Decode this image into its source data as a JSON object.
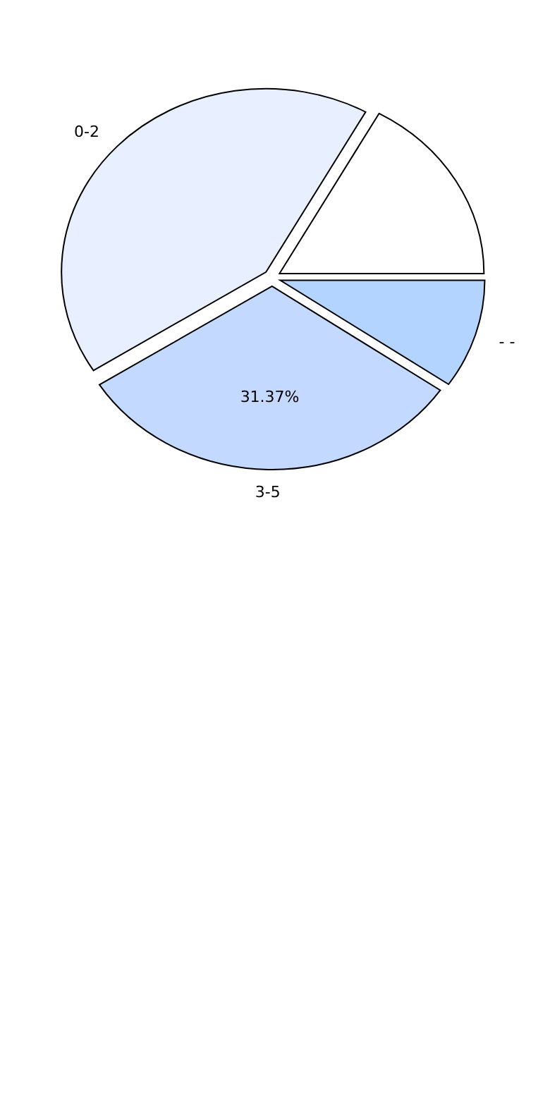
{
  "chart_data": {
    "type": "pie",
    "categories": [
      "- -",
      "3-5",
      "0-2",
      null
    ],
    "values": [
      9.6,
      31.37,
      42.1,
      16.9
    ],
    "colors": [
      "#b3d4ff",
      "#c4d9ff",
      "#e8f0ff",
      "#ffffff"
    ],
    "value_labels": [
      null,
      "31.37%",
      null,
      null
    ]
  }
}
